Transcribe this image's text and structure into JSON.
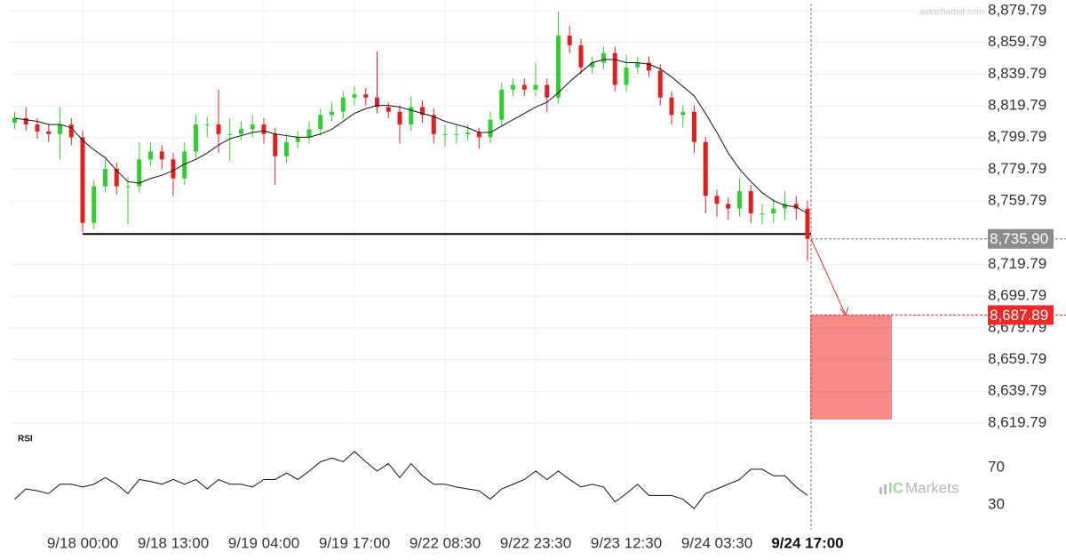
{
  "chart_data": {
    "type": "candlestick",
    "categories": [
      null,
      null,
      null,
      null,
      null,
      null,
      "9/18 00:00",
      null,
      null,
      null,
      null,
      null,
      null,
      null,
      "9/18 13:00",
      null,
      null,
      null,
      null,
      null,
      null,
      null,
      "9/19 04:00",
      null,
      null,
      null,
      null,
      null,
      null,
      null,
      "9/19 17:00",
      null,
      null,
      null,
      null,
      null,
      null,
      null,
      "9/22 08:30",
      null,
      null,
      null,
      null,
      null,
      null,
      null,
      "9/22 23:30",
      null,
      null,
      null,
      null,
      null,
      null,
      null,
      "9/23 12:30",
      null,
      null,
      null,
      null,
      null,
      null,
      null,
      "9/24 03:30",
      null,
      null,
      null,
      null,
      null,
      null,
      null,
      "9/24 17:00"
    ],
    "open": [
      8809,
      8812,
      8808,
      8803.6,
      8802,
      8808,
      8800,
      8746,
      8769,
      8780,
      8769,
      8769,
      8786,
      8791,
      8786,
      8774,
      8791,
      8808,
      8808,
      8802,
      8802,
      8805,
      8808,
      8802,
      8788,
      8797,
      8800,
      8805,
      8814,
      8816,
      8825,
      8827,
      8825,
      8819,
      8816,
      8808,
      8819,
      8814,
      8802,
      8802,
      8802,
      8803,
      8800,
      8811,
      8830,
      8833,
      8830,
      8833,
      8825,
      8864,
      8858,
      8844,
      8847,
      8853,
      8833,
      8844,
      8847,
      8842,
      8825,
      8814,
      8816,
      8797,
      8763,
      8758,
      8755,
      8766,
      8752,
      8752,
      8755,
      8758,
      8755
    ],
    "high": [
      8816,
      8819,
      8812,
      8808,
      8819,
      8812,
      8804,
      8773,
      8786,
      8784,
      8775,
      8797,
      8797,
      8795,
      8790,
      8797,
      8814,
      8813,
      8830,
      8812,
      8810,
      8814,
      8812,
      8806,
      8802,
      8804,
      8810,
      8818,
      8822,
      8829,
      8832,
      8831,
      8854,
      8822,
      8820,
      8826,
      8823,
      8818,
      8808,
      8808,
      8808,
      8806,
      8816,
      8834,
      8837,
      8837,
      8847,
      8837,
      8879,
      8870,
      8862,
      8851,
      8857,
      8857,
      8852,
      8851,
      8851,
      8846,
      8829,
      8820,
      8820,
      8800,
      8767,
      8762,
      8774,
      8770,
      8758,
      8761,
      8766,
      8763,
      8760
    ],
    "low": [
      8805,
      8804,
      8799,
      8797,
      8786,
      8795,
      8740,
      8742,
      8765,
      8764,
      8745,
      8765,
      8782,
      8780,
      8763,
      8770,
      8787,
      8800,
      8790,
      8785,
      8798,
      8800,
      8796,
      8770,
      8784,
      8793,
      8796,
      8801,
      8810,
      8812,
      8820,
      8820,
      8815,
      8812,
      8796,
      8804,
      8809,
      8796,
      8794,
      8796,
      8798,
      8793,
      8796,
      8807,
      8826,
      8826,
      8826,
      8816,
      8821,
      8853,
      8840,
      8840,
      8843,
      8829,
      8829,
      8840,
      8838,
      8820,
      8808,
      8806,
      8790,
      8752,
      8750,
      8748,
      8750,
      8746,
      8745,
      8746,
      8748,
      8748,
      8722
    ],
    "close": [
      8812,
      8808,
      8803.6,
      8802,
      8808,
      8800,
      8746,
      8769,
      8780,
      8769,
      8769,
      8786,
      8791,
      8786,
      8774,
      8791,
      8808,
      8808,
      8802,
      8802,
      8805,
      8808,
      8802,
      8788,
      8797,
      8800,
      8805,
      8814,
      8816,
      8825,
      8827,
      8825,
      8819,
      8816,
      8808,
      8819,
      8814,
      8802,
      8802,
      8802,
      8803,
      8800,
      8811,
      8830,
      8833,
      8830,
      8833,
      8825,
      8864,
      8858,
      8844,
      8847,
      8853,
      8833,
      8844,
      8847,
      8842,
      8825,
      8814,
      8816,
      8797,
      8763,
      8758,
      8755,
      8766,
      8752,
      8752,
      8755,
      8758,
      8755,
      8735.9
    ],
    "up_color": "#33cc33",
    "down_color": "#e02020",
    "ylim": [
      8617.5,
      8886.5
    ],
    "yticks": [
      {
        "value": 8879.79,
        "label": "8,879.79"
      },
      {
        "value": 8859.79,
        "label": "8,859.79"
      },
      {
        "value": 8839.79,
        "label": "8,839.79"
      },
      {
        "value": 8819.79,
        "label": "8,819.79"
      },
      {
        "value": 8799.79,
        "label": "8,799.79"
      },
      {
        "value": 8779.79,
        "label": "8,779.79"
      },
      {
        "value": 8759.79,
        "label": "8,759.79"
      },
      {
        "value": 8719.79,
        "label": "8,719.79"
      },
      {
        "value": 8699.79,
        "label": "8,699.79"
      },
      {
        "value": 8679.79,
        "label": "8,679.79"
      },
      {
        "value": 8659.79,
        "label": "8,659.79"
      },
      {
        "value": 8639.79,
        "label": "8,639.79"
      },
      {
        "value": 8619.79,
        "label": "8,619.79"
      }
    ],
    "grid": true,
    "moving_average": {
      "color": "#111111",
      "values": [
        8812,
        8811,
        8810,
        8808,
        8808,
        8806,
        8798,
        8792,
        8787,
        8779,
        8772,
        8771,
        8774,
        8776,
        8779,
        8783,
        8786,
        8790,
        8795,
        8799,
        8801,
        8803,
        8804,
        8802,
        8801,
        8800,
        8800,
        8802,
        8805,
        8810,
        8815,
        8818,
        8820,
        8820,
        8819,
        8817,
        8815,
        8813,
        8810,
        8808,
        8806,
        8803,
        8803,
        8807,
        8811,
        8815,
        8819,
        8822,
        8828,
        8835,
        8841,
        8847,
        8849,
        8849,
        8847,
        8847,
        8846,
        8843,
        8838,
        8832,
        8826,
        8815,
        8803,
        8790,
        8780,
        8772,
        8765,
        8760,
        8757,
        8756,
        8752
      ]
    },
    "support_level": 8739,
    "last_price": {
      "value": 8735.9,
      "label": "8,735.90",
      "color": "#8c8c8c"
    },
    "forecast": {
      "value": 8687.89,
      "label": "8,687.89",
      "low": 8622,
      "color": "#f02828"
    },
    "rsi": {
      "title": "RSI",
      "values": [
        36,
        47,
        45,
        42,
        52,
        52,
        49,
        52,
        59,
        52,
        42,
        57,
        55,
        52,
        57,
        52,
        57,
        47,
        57,
        52,
        52,
        49,
        57,
        57,
        64,
        57,
        66,
        76,
        80,
        76,
        87,
        76,
        66,
        74,
        59,
        74,
        61,
        52,
        52,
        49,
        47,
        45,
        36,
        47,
        52,
        57,
        66,
        57,
        66,
        57,
        49,
        52,
        49,
        33,
        42,
        52,
        40,
        40,
        40,
        36,
        26,
        42,
        47,
        52,
        57,
        68,
        68,
        61,
        61,
        49,
        40
      ],
      "ylim": [
        9,
        104
      ],
      "yticks": [
        70,
        30
      ],
      "color": "#111111"
    },
    "watermark": "autochartist.com",
    "brand": {
      "prefix": "IC",
      "name": "Markets"
    }
  }
}
